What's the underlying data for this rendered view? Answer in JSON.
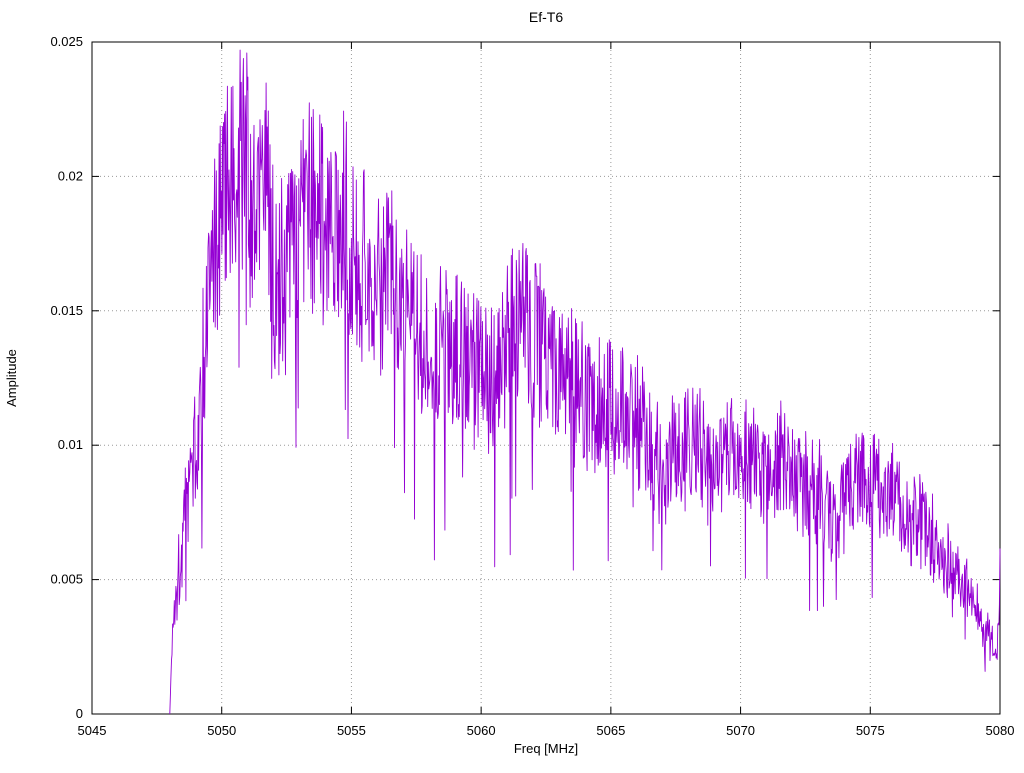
{
  "chart_data": {
    "type": "line",
    "title": "Ef-T6",
    "xlabel": "Freq [MHz]",
    "ylabel": "Amplitude",
    "xlim": [
      5045,
      5080
    ],
    "ylim": [
      0,
      0.025
    ],
    "xticks": [
      "5045",
      "5050",
      "5055",
      "5060",
      "5065",
      "5070",
      "5075",
      "5080"
    ],
    "yticks": [
      "0",
      "0.005",
      "0.01",
      "0.015",
      "0.02",
      "0.025"
    ],
    "grid": "dotted",
    "legend": "none",
    "series": [
      {
        "name": "Ef-T6",
        "color": "#9400d3",
        "x_start": 5048.0,
        "x_end": 5080.0,
        "peak": {
          "x": 5050.5,
          "y": 0.0246
        },
        "end_spike": {
          "x": 5080.0,
          "y": 0.006
        },
        "envelope_points": [
          [
            5048.0,
            0.0002
          ],
          [
            5048.15,
            0.004
          ],
          [
            5048.5,
            0.0065
          ],
          [
            5048.8,
            0.0095
          ],
          [
            5049.1,
            0.01
          ],
          [
            5049.3,
            0.0135
          ],
          [
            5049.6,
            0.0165
          ],
          [
            5049.9,
            0.0185
          ],
          [
            5050.2,
            0.0205
          ],
          [
            5050.5,
            0.0215
          ],
          [
            5050.9,
            0.0205
          ],
          [
            5051.3,
            0.0185
          ],
          [
            5051.7,
            0.0195
          ],
          [
            5052.1,
            0.016
          ],
          [
            5052.6,
            0.017
          ],
          [
            5053.2,
            0.018
          ],
          [
            5053.6,
            0.019
          ],
          [
            5054.2,
            0.018
          ],
          [
            5054.8,
            0.0185
          ],
          [
            5055.3,
            0.0165
          ],
          [
            5056.0,
            0.016
          ],
          [
            5056.6,
            0.0165
          ],
          [
            5057.2,
            0.015
          ],
          [
            5057.8,
            0.014
          ],
          [
            5058.4,
            0.0135
          ],
          [
            5059.0,
            0.014
          ],
          [
            5059.6,
            0.013
          ],
          [
            5060.2,
            0.0125
          ],
          [
            5060.8,
            0.0135
          ],
          [
            5061.3,
            0.015
          ],
          [
            5061.8,
            0.0145
          ],
          [
            5062.4,
            0.0135
          ],
          [
            5063.0,
            0.0125
          ],
          [
            5063.8,
            0.012
          ],
          [
            5064.5,
            0.0115
          ],
          [
            5065.2,
            0.012
          ],
          [
            5065.8,
            0.0115
          ],
          [
            5066.4,
            0.01
          ],
          [
            5067.0,
            0.0092
          ],
          [
            5067.6,
            0.01
          ],
          [
            5068.2,
            0.01
          ],
          [
            5068.8,
            0.0093
          ],
          [
            5069.5,
            0.01
          ],
          [
            5070.1,
            0.0097
          ],
          [
            5070.7,
            0.009
          ],
          [
            5071.3,
            0.0095
          ],
          [
            5072.0,
            0.009
          ],
          [
            5072.6,
            0.0082
          ],
          [
            5073.2,
            0.008
          ],
          [
            5073.6,
            0.0072
          ],
          [
            5074.2,
            0.0085
          ],
          [
            5074.8,
            0.009
          ],
          [
            5075.4,
            0.0082
          ],
          [
            5076.0,
            0.008
          ],
          [
            5076.6,
            0.0075
          ],
          [
            5077.2,
            0.0068
          ],
          [
            5077.8,
            0.0058
          ],
          [
            5078.4,
            0.0052
          ],
          [
            5079.0,
            0.0042
          ],
          [
            5079.5,
            0.003
          ],
          [
            5079.9,
            0.002
          ],
          [
            5080.0,
            0.0058
          ]
        ],
        "noise": {
          "relative": 0.22,
          "absolute": 0.0005,
          "deep_fade_prob": 0.02,
          "deep_fade_factor": 0.45,
          "seed": 1337,
          "samples": 1500
        }
      }
    ]
  }
}
